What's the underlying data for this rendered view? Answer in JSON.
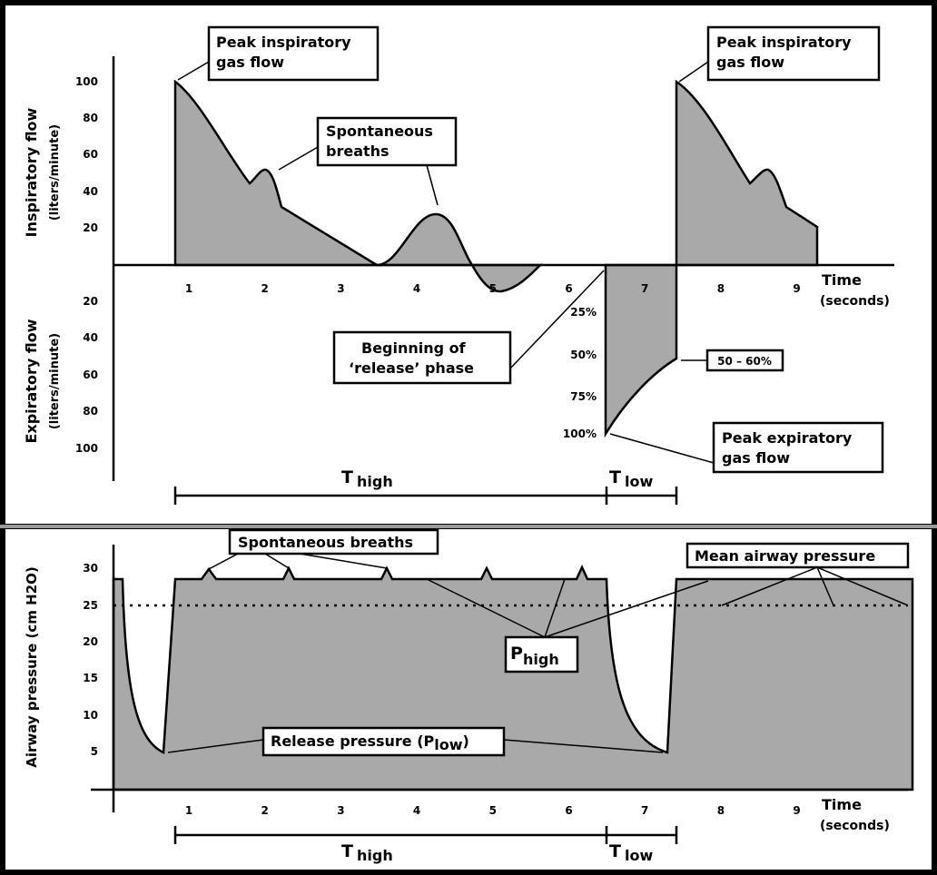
{
  "flow_chart": {
    "y_axis_title_inspiratory": "Inspiratory flow",
    "y_axis_unit_inspiratory": "(liters/minute)",
    "y_axis_title_expiratory": "Expiratory flow",
    "y_axis_unit_expiratory": "(liters/minute)",
    "inspiratory_ticks": [
      "100",
      "80",
      "60",
      "40",
      "20"
    ],
    "expiratory_ticks": [
      "20",
      "40",
      "60",
      "80",
      "100"
    ],
    "x_ticks": [
      "1",
      "2",
      "3",
      "4",
      "5",
      "6",
      "7",
      "8",
      "9"
    ],
    "x_axis_title": "Time",
    "x_axis_unit": "(seconds)",
    "percent_ticks": [
      "25%",
      "50%",
      "75%",
      "100%"
    ],
    "peak_inspiratory_1": [
      "Peak inspiratory",
      "gas flow"
    ],
    "spontaneous_breaths": [
      "Spontaneous",
      "breaths"
    ],
    "peak_inspiratory_2": [
      "Peak inspiratory",
      "gas flow"
    ],
    "release_phase": [
      "Beginning of",
      "‘release’ phase"
    ],
    "percent_range": "50 – 60%",
    "peak_expiratory": [
      "Peak expiratory",
      "gas flow"
    ],
    "t_high": [
      "T",
      "high"
    ],
    "t_low": [
      "T",
      "low"
    ]
  },
  "pressure_chart": {
    "y_axis_title": "Airway pressure (cm H2O)",
    "y_ticks": [
      "30",
      "25",
      "20",
      "15",
      "10",
      "5"
    ],
    "x_ticks": [
      "1",
      "2",
      "3",
      "4",
      "5",
      "6",
      "7",
      "8",
      "9"
    ],
    "x_axis_title": "Time",
    "x_axis_unit": "(seconds)",
    "spontaneous_breaths": "Spontaneous breaths",
    "mean_airway_pressure": "Mean airway pressure",
    "p_high": [
      "P",
      "high"
    ],
    "release_pressure": [
      "Release pressure (P",
      "low",
      ")"
    ],
    "t_high": [
      "T",
      "high"
    ],
    "t_low": [
      "T",
      "low"
    ]
  }
}
